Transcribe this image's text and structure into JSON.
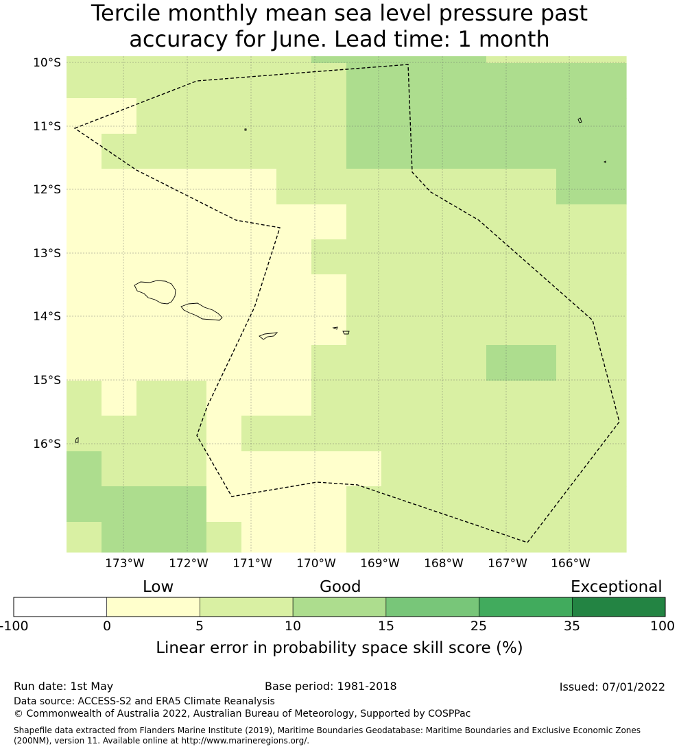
{
  "title": {
    "line1": "Tercile monthly mean sea level pressure past",
    "line2": "accuracy for June. Lead time: 1 month"
  },
  "map": {
    "lat_labels": [
      "10°S",
      "11°S",
      "12°S",
      "13°S",
      "14°S",
      "15°S",
      "16°S"
    ],
    "lon_labels": [
      "173°W",
      "172°W",
      "171°W",
      "170°W",
      "169°W",
      "168°W",
      "167°W",
      "166°W"
    ],
    "grid_lines": true,
    "boundary": "dashed EEZ outline",
    "colors": {
      "0": "#ffffff",
      "1": "#ffffcc",
      "2": "#d9f0a3",
      "3": "#addd8e",
      "4": "#78c679",
      "5": "#41ab5d",
      "6": "#238443"
    },
    "cell_classes": [
      "2222222333332222",
      "2222222233333333",
      "1122222233333333",
      "1222222233333333",
      "1111112222222233",
      "1111111122222222",
      "1111111222222222",
      "1111111122222222",
      "1111111122222222",
      "1111111222223322",
      "2122111222222222",
      "2222122222222222",
      "3222111112222222",
      "3333111122222222",
      "2333211122222222",
      "4333222332222322"
    ]
  },
  "colorbar": {
    "categories": [
      "Low",
      "Good",
      "Exceptional"
    ],
    "ticks": [
      "-100",
      "0",
      "5",
      "10",
      "15",
      "25",
      "35",
      "100"
    ],
    "colors": [
      "#ffffff",
      "#ffffcc",
      "#d9f0a3",
      "#addd8e",
      "#78c679",
      "#41ab5d",
      "#238443"
    ],
    "label": "Linear error in probability space skill score (%)"
  },
  "footer": {
    "run_date": "Run date: 1st May",
    "base_period": "Base period: 1981-2018",
    "issued": "Issued: 07/01/2022",
    "data_source": "Data source: ACCESS-S2 and ERA5 Climate Reanalysis",
    "copyright": "© Commonwealth of Australia 2022, Australian Bureau of Meteorology, Supported by COSPPac",
    "shapefile": "Shapefile data extracted from Flanders Marine Institute (2019), Maritime Boundaries Geodatabase: Maritime Boundaries and Exclusive Economic Zones (200NM), version 11. Available online at http://www.marineregions.org/."
  }
}
